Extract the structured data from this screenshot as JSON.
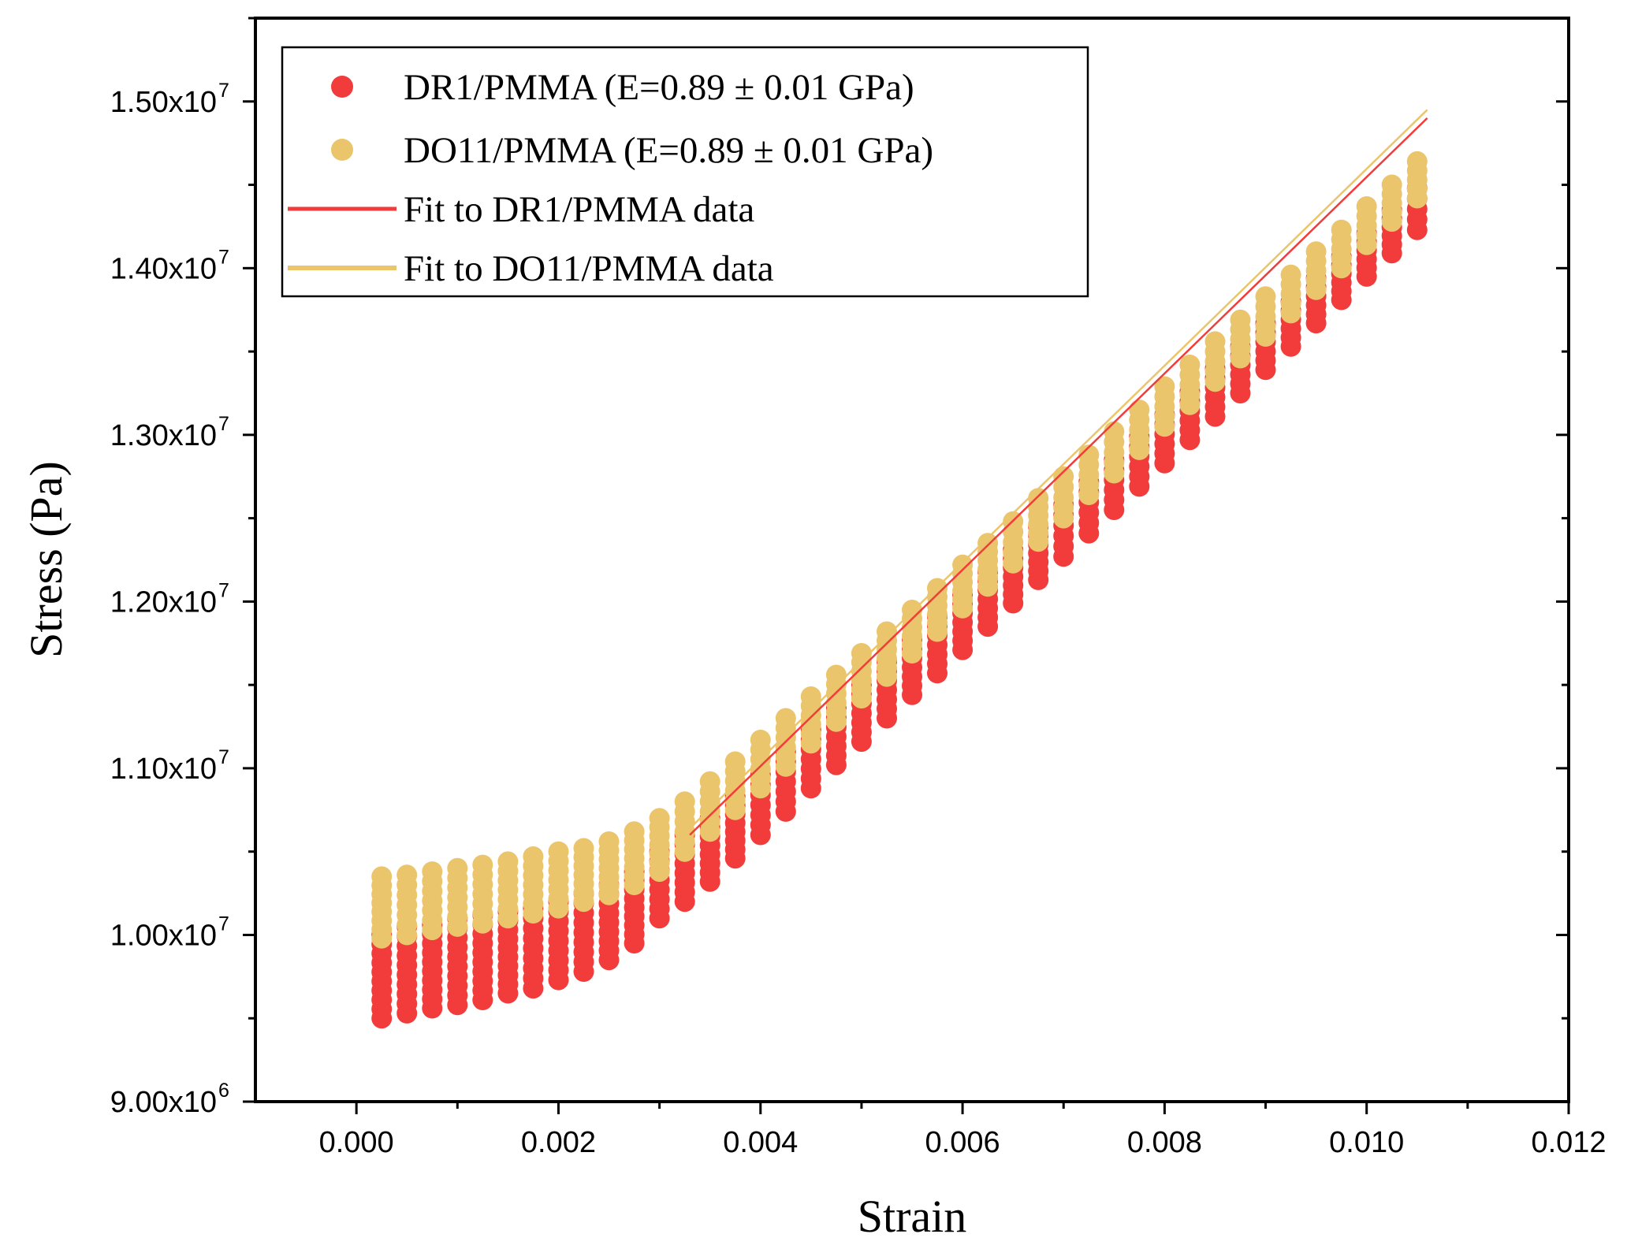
{
  "chart_data": {
    "type": "scatter",
    "xlabel": "Strain",
    "ylabel": "Stress (Pa)",
    "xlim": [
      -0.001,
      0.012
    ],
    "ylim": [
      9000000,
      15500000
    ],
    "x_ticks": [
      {
        "value": 0.0,
        "label": "0.000"
      },
      {
        "value": 0.002,
        "label": "0.002"
      },
      {
        "value": 0.004,
        "label": "0.004"
      },
      {
        "value": 0.006,
        "label": "0.006"
      },
      {
        "value": 0.008,
        "label": "0.008"
      },
      {
        "value": 0.01,
        "label": "0.010"
      },
      {
        "value": 0.012,
        "label": "0.012"
      }
    ],
    "y_ticks": [
      {
        "value": 9000000,
        "mantissa": "9.00x10",
        "exponent": "6"
      },
      {
        "value": 10000000,
        "mantissa": "1.00x10",
        "exponent": "7"
      },
      {
        "value": 11000000,
        "mantissa": "1.10x10",
        "exponent": "7"
      },
      {
        "value": 12000000,
        "mantissa": "1.20x10",
        "exponent": "7"
      },
      {
        "value": 13000000,
        "mantissa": "1.30x10",
        "exponent": "7"
      },
      {
        "value": 14000000,
        "mantissa": "1.40x10",
        "exponent": "7"
      },
      {
        "value": 15000000,
        "mantissa": "1.50x10",
        "exponent": "7"
      }
    ],
    "series": [
      {
        "name": "DR1/PMMA (E=0.89 ± 0.01 GPa)",
        "kind": "scatter",
        "color": "#f23b3b",
        "strain": [
          0.00025,
          0.0005,
          0.00075,
          0.001,
          0.00125,
          0.0015,
          0.00175,
          0.002,
          0.00225,
          0.0025,
          0.00275,
          0.003,
          0.00325,
          0.0035,
          0.00375,
          0.004,
          0.00425,
          0.0045,
          0.00475,
          0.005,
          0.00525,
          0.0055,
          0.00575,
          0.006,
          0.00625,
          0.0065,
          0.00675,
          0.007,
          0.00725,
          0.0075,
          0.00775,
          0.008,
          0.00825,
          0.0085,
          0.00875,
          0.009,
          0.00925,
          0.0095,
          0.00975,
          0.01,
          0.01025,
          0.0105
        ],
        "stress_high": [
          10000000,
          10050000,
          10060000,
          10100000,
          10120000,
          10140000,
          10160000,
          10200000,
          10250000,
          10300000,
          10380000,
          10500000,
          10600000,
          10700000,
          10830000,
          10960000,
          11100000,
          11230000,
          11360000,
          11500000,
          11640000,
          11770000,
          11910000,
          12040000,
          12180000,
          12310000,
          12450000,
          12580000,
          12720000,
          12850000,
          12990000,
          13120000,
          13260000,
          13400000,
          13530000,
          13670000,
          13800000,
          13940000,
          14070000,
          14210000,
          14350000,
          14480000
        ],
        "stress_low": [
          9500000,
          9530000,
          9560000,
          9580000,
          9610000,
          9650000,
          9680000,
          9730000,
          9780000,
          9850000,
          9950000,
          10100000,
          10200000,
          10320000,
          10460000,
          10600000,
          10740000,
          10880000,
          11020000,
          11160000,
          11300000,
          11440000,
          11570000,
          11710000,
          11850000,
          11990000,
          12130000,
          12270000,
          12410000,
          12550000,
          12690000,
          12830000,
          12970000,
          13110000,
          13250000,
          13390000,
          13530000,
          13670000,
          13810000,
          13950000,
          14090000,
          14230000
        ]
      },
      {
        "name": "DO11/PMMA (E=0.89 ± 0.01 GPa)",
        "kind": "scatter",
        "color": "#ebc56b",
        "strain": [
          0.00025,
          0.0005,
          0.00075,
          0.001,
          0.00125,
          0.0015,
          0.00175,
          0.002,
          0.00225,
          0.0025,
          0.00275,
          0.003,
          0.00325,
          0.0035,
          0.00375,
          0.004,
          0.00425,
          0.0045,
          0.00475,
          0.005,
          0.00525,
          0.0055,
          0.00575,
          0.006,
          0.00625,
          0.0065,
          0.00675,
          0.007,
          0.00725,
          0.0075,
          0.00775,
          0.008,
          0.00825,
          0.0085,
          0.00875,
          0.009,
          0.00925,
          0.0095,
          0.00975,
          0.01,
          0.01025,
          0.0105
        ],
        "stress_high": [
          10350000,
          10360000,
          10380000,
          10400000,
          10420000,
          10440000,
          10470000,
          10500000,
          10520000,
          10560000,
          10620000,
          10700000,
          10800000,
          10920000,
          11040000,
          11170000,
          11300000,
          11430000,
          11560000,
          11690000,
          11820000,
          11950000,
          12080000,
          12220000,
          12350000,
          12480000,
          12620000,
          12750000,
          12880000,
          13020000,
          13150000,
          13290000,
          13420000,
          13560000,
          13690000,
          13830000,
          13960000,
          14100000,
          14230000,
          14370000,
          14500000,
          14640000
        ],
        "stress_low": [
          9980000,
          10000000,
          10030000,
          10050000,
          10070000,
          10100000,
          10130000,
          10160000,
          10200000,
          10240000,
          10300000,
          10380000,
          10500000,
          10620000,
          10750000,
          10880000,
          11010000,
          11150000,
          11280000,
          11420000,
          11550000,
          11690000,
          11820000,
          11960000,
          12090000,
          12230000,
          12360000,
          12500000,
          12640000,
          12770000,
          12910000,
          13050000,
          13180000,
          13320000,
          13460000,
          13590000,
          13730000,
          13870000,
          14000000,
          14140000,
          14280000,
          14420000
        ]
      },
      {
        "name": "Fit to DR1/PMMA data",
        "kind": "line",
        "color": "#f23b3b",
        "strain": [
          0.0033,
          0.0106
        ],
        "stress": [
          10600000,
          14900000
        ]
      },
      {
        "name": "Fit to DO11/PMMA data",
        "kind": "line",
        "color": "#ebc56b",
        "strain": [
          0.0033,
          0.0106
        ],
        "stress": [
          10640000,
          14950000
        ]
      }
    ]
  }
}
